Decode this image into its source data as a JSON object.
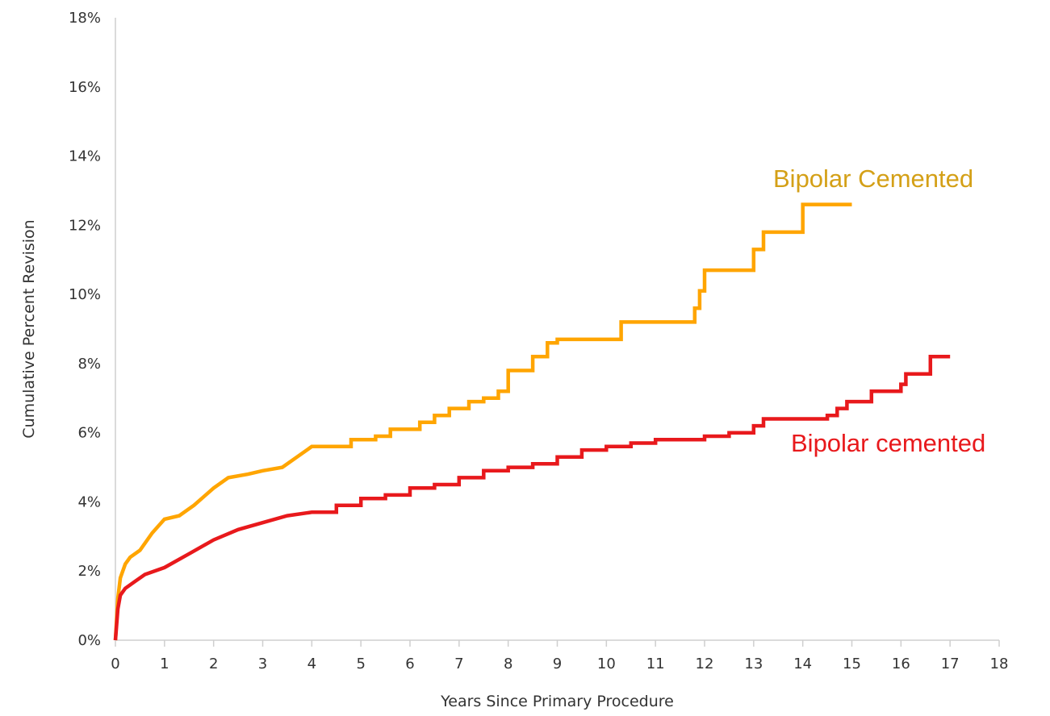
{
  "chart_data": {
    "type": "line",
    "title": "",
    "xlabel": "Years Since Primary Procedure",
    "ylabel": "Cumulative Percent Revision",
    "xlim": [
      0,
      18
    ],
    "ylim": [
      0,
      18
    ],
    "x_ticks": [
      "0",
      "1",
      "2",
      "3",
      "4",
      "5",
      "6",
      "7",
      "8",
      "9",
      "10",
      "11",
      "12",
      "13",
      "14",
      "15",
      "16",
      "17",
      "18"
    ],
    "y_ticks": [
      "0%",
      "2%",
      "4%",
      "6%",
      "8%",
      "10%",
      "12%",
      "14%",
      "16%",
      "18%"
    ],
    "grid": false,
    "series": [
      {
        "name": "Bipolar Cemented",
        "color": "#FFA500",
        "label_color": "#D4A017",
        "points": [
          [
            0,
            0
          ],
          [
            0.05,
            1.2
          ],
          [
            0.1,
            1.8
          ],
          [
            0.2,
            2.2
          ],
          [
            0.3,
            2.4
          ],
          [
            0.5,
            2.6
          ],
          [
            0.75,
            3.1
          ],
          [
            1,
            3.5
          ],
          [
            1.3,
            3.6
          ],
          [
            1.6,
            3.9
          ],
          [
            2,
            4.4
          ],
          [
            2.3,
            4.7
          ],
          [
            2.7,
            4.8
          ],
          [
            3,
            4.9
          ],
          [
            3.4,
            5.0
          ],
          [
            3.7,
            5.3
          ],
          [
            4,
            5.6
          ],
          [
            4.5,
            5.6
          ],
          [
            4.8,
            5.8
          ],
          [
            5,
            5.8
          ],
          [
            5.3,
            5.9
          ],
          [
            5.6,
            6.1
          ],
          [
            6.1,
            6.1
          ],
          [
            6.2,
            6.3
          ],
          [
            6.5,
            6.5
          ],
          [
            6.8,
            6.7
          ],
          [
            7.2,
            6.9
          ],
          [
            7.5,
            7.0
          ],
          [
            7.8,
            7.2
          ],
          [
            8,
            7.8
          ],
          [
            8.5,
            8.2
          ],
          [
            8.8,
            8.6
          ],
          [
            9,
            8.7
          ],
          [
            9.5,
            8.7
          ],
          [
            10.2,
            8.7
          ],
          [
            10.3,
            9.2
          ],
          [
            11.2,
            9.2
          ],
          [
            11.7,
            9.2
          ],
          [
            11.8,
            9.6
          ],
          [
            11.9,
            10.1
          ],
          [
            12,
            10.7
          ],
          [
            12.5,
            10.7
          ],
          [
            12.9,
            10.7
          ],
          [
            13,
            11.3
          ],
          [
            13.2,
            11.8
          ],
          [
            13.9,
            11.8
          ],
          [
            14,
            12.6
          ],
          [
            14.7,
            12.6
          ],
          [
            15,
            12.6
          ]
        ]
      },
      {
        "name": "Bipolar cemented",
        "color": "#E8191C",
        "label_color": "#E8191C",
        "points": [
          [
            0,
            0
          ],
          [
            0.05,
            0.9
          ],
          [
            0.1,
            1.3
          ],
          [
            0.2,
            1.5
          ],
          [
            0.4,
            1.7
          ],
          [
            0.6,
            1.9
          ],
          [
            1,
            2.1
          ],
          [
            1.5,
            2.5
          ],
          [
            2,
            2.9
          ],
          [
            2.5,
            3.2
          ],
          [
            3,
            3.4
          ],
          [
            3.5,
            3.6
          ],
          [
            4,
            3.7
          ],
          [
            4.5,
            3.9
          ],
          [
            5,
            4.1
          ],
          [
            5.5,
            4.2
          ],
          [
            6,
            4.4
          ],
          [
            6.5,
            4.5
          ],
          [
            7,
            4.7
          ],
          [
            7.5,
            4.9
          ],
          [
            8,
            5.0
          ],
          [
            8.5,
            5.1
          ],
          [
            9,
            5.3
          ],
          [
            9.5,
            5.5
          ],
          [
            10,
            5.6
          ],
          [
            10.5,
            5.7
          ],
          [
            11,
            5.8
          ],
          [
            11.5,
            5.8
          ],
          [
            12,
            5.9
          ],
          [
            12.5,
            6.0
          ],
          [
            13,
            6.2
          ],
          [
            13.2,
            6.4
          ],
          [
            14,
            6.4
          ],
          [
            14.5,
            6.5
          ],
          [
            14.7,
            6.7
          ],
          [
            14.9,
            6.9
          ],
          [
            15.3,
            6.9
          ],
          [
            15.4,
            7.2
          ],
          [
            15.8,
            7.2
          ],
          [
            16,
            7.4
          ],
          [
            16.1,
            7.7
          ],
          [
            16.5,
            7.7
          ],
          [
            16.6,
            8.2
          ],
          [
            17,
            8.2
          ]
        ]
      }
    ]
  }
}
